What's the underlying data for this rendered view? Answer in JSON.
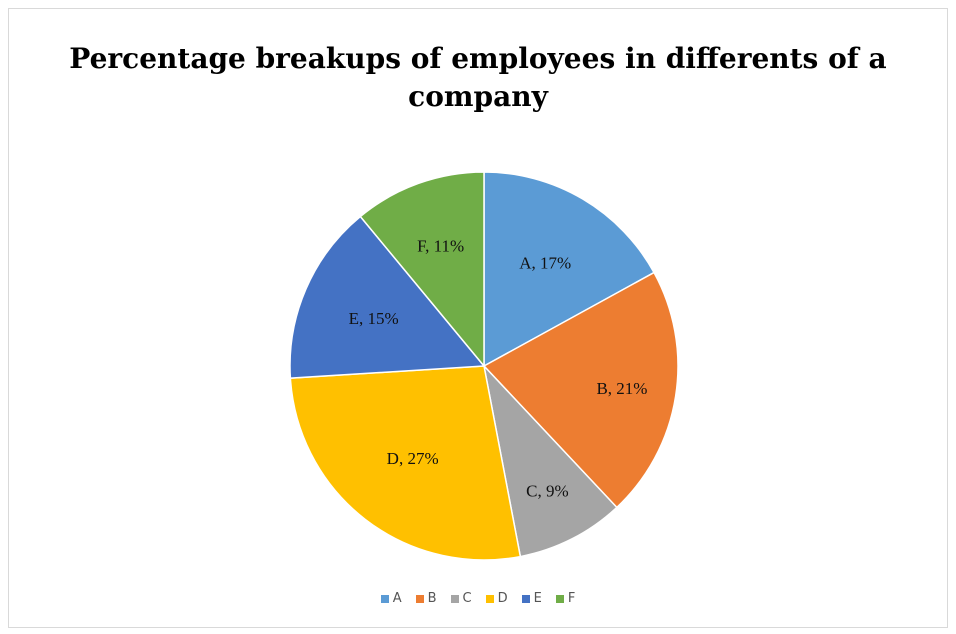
{
  "chart_data": {
    "type": "pie",
    "title": "Percentage breakups of employees in differents of a company",
    "categories": [
      "A",
      "B",
      "C",
      "D",
      "E",
      "F"
    ],
    "values": [
      17,
      21,
      9,
      27,
      15,
      11
    ],
    "labels": [
      "A, 17%",
      "B, 21%",
      "C, 9%",
      "D, 27%",
      "E, 15%",
      "F, 11%"
    ],
    "colors": [
      "#5B9BD5",
      "#ED7D31",
      "#A5A5A5",
      "#FFC000",
      "#4472C4",
      "#70AD47"
    ],
    "legend_placement": "bottom"
  }
}
